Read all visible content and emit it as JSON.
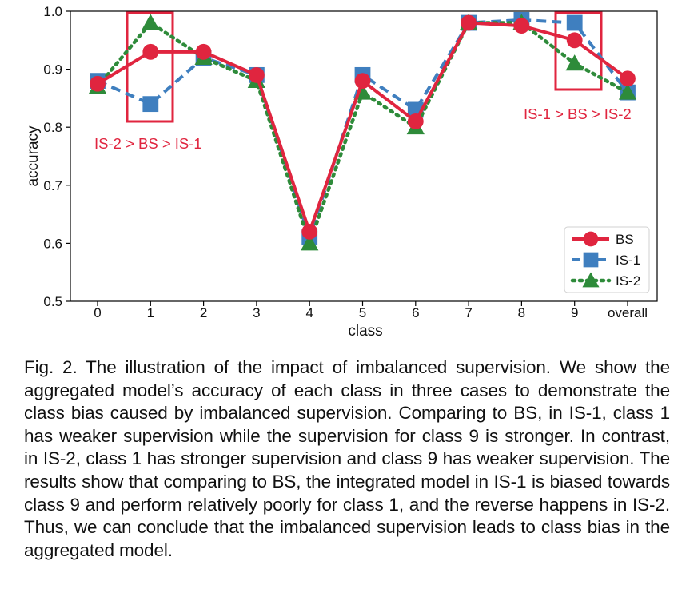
{
  "chart_data": {
    "type": "line",
    "categories": [
      "0",
      "1",
      "2",
      "3",
      "4",
      "5",
      "6",
      "7",
      "8",
      "9",
      "overall"
    ],
    "xlabel": "class",
    "ylabel": "accuracy",
    "ylim": [
      0.5,
      1.0
    ],
    "yticks": [
      0.5,
      0.6,
      0.7,
      0.8,
      0.9,
      1.0
    ],
    "ytick_labels": [
      "0.5",
      "0.6",
      "0.7",
      "0.8",
      "0.9",
      "1.0"
    ],
    "grid": false,
    "legend_position": "lower-right",
    "series": [
      {
        "name": "BS",
        "color": "#e0253f",
        "style": "solid",
        "marker": "circle",
        "values": [
          0.875,
          0.93,
          0.93,
          0.89,
          0.62,
          0.88,
          0.81,
          0.98,
          0.975,
          0.95,
          0.884
        ]
      },
      {
        "name": "IS-1",
        "color": "#3f7fbf",
        "style": "dashed",
        "marker": "square",
        "values": [
          0.88,
          0.84,
          0.92,
          0.89,
          0.61,
          0.89,
          0.83,
          0.98,
          0.985,
          0.98,
          0.86
        ]
      },
      {
        "name": "IS-2",
        "color": "#2e8b3a",
        "style": "dotted",
        "marker": "triangle",
        "values": [
          0.87,
          0.98,
          0.92,
          0.88,
          0.6,
          0.86,
          0.8,
          0.98,
          0.98,
          0.91,
          0.86
        ]
      }
    ],
    "annotations": [
      {
        "text": "IS-2 > BS > IS-1",
        "highlight_category": "1",
        "color": "#e0253f"
      },
      {
        "text": "IS-1 > BS > IS-2",
        "highlight_category": "9",
        "color": "#e0253f"
      }
    ]
  },
  "caption": "Fig. 2. The illustration of the impact of imbalanced supervision. We show the aggregated model’s accuracy of each class in three cases to demonstrate the class bias caused by imbalanced supervision. Comparing to BS, in IS-1, class 1 has weaker supervision while the supervision for class 9 is stronger. In contrast, in IS-2, class 1 has stronger supervision and class 9 has weaker supervision. The results show that comparing to BS, the integrated model in IS-1 is biased towards class 9 and perform relatively poorly for class 1, and the reverse happens in IS-2. Thus, we can conclude that the imbalanced supervision leads to class bias in the aggregated model."
}
